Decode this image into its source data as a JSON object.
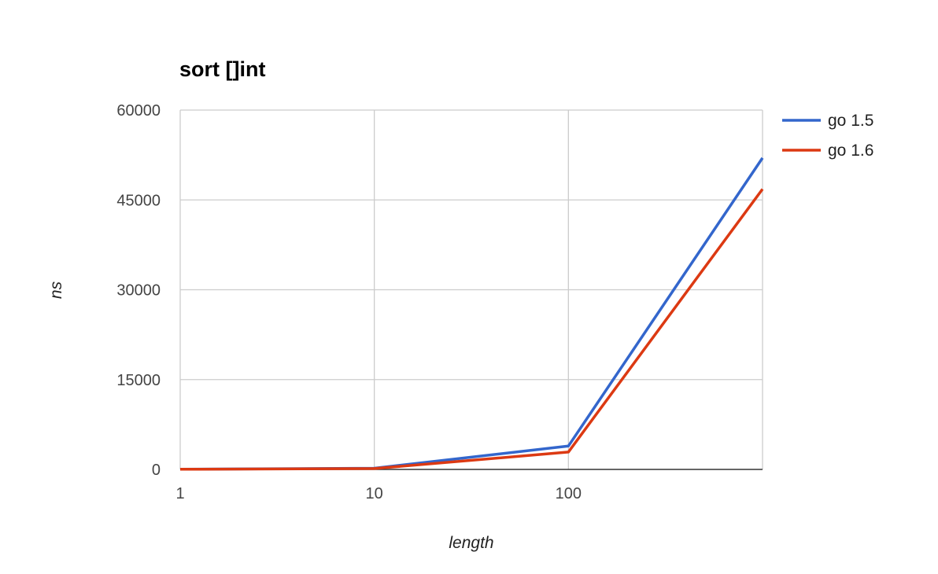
{
  "chart_data": {
    "type": "line",
    "title": "sort []int",
    "xlabel": "length",
    "ylabel": "ns",
    "x_scale": "log",
    "x": [
      1,
      10,
      100,
      1000
    ],
    "x_ticks": [
      "1",
      "10",
      "100"
    ],
    "xlim": [
      1,
      1000
    ],
    "y_ticks": [
      "0",
      "15000",
      "30000",
      "45000",
      "60000"
    ],
    "ylim": [
      0,
      60000
    ],
    "grid": true,
    "legend_position": "top-right",
    "series": [
      {
        "name": "go 1.5",
        "color": "#3366cc",
        "values": [
          30,
          200,
          3900,
          52000
        ]
      },
      {
        "name": "go 1.6",
        "color": "#dc3912",
        "values": [
          20,
          150,
          2900,
          46800
        ]
      }
    ]
  }
}
